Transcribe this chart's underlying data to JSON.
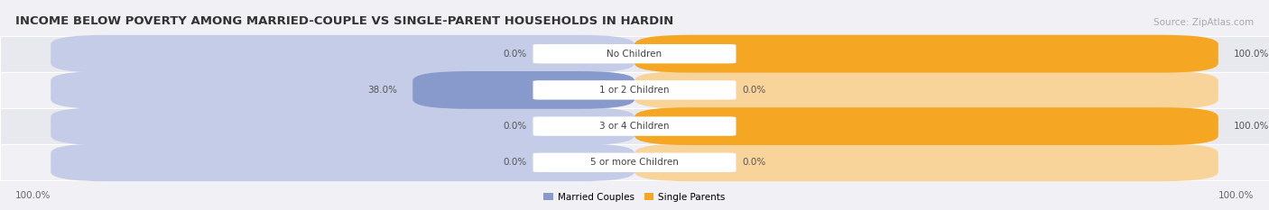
{
  "title": "INCOME BELOW POVERTY AMONG MARRIED-COUPLE VS SINGLE-PARENT HOUSEHOLDS IN HARDIN",
  "source": "Source: ZipAtlas.com",
  "categories": [
    "No Children",
    "1 or 2 Children",
    "3 or 4 Children",
    "5 or more Children"
  ],
  "married_values": [
    0.0,
    38.0,
    0.0,
    0.0
  ],
  "single_values": [
    100.0,
    0.0,
    100.0,
    0.0
  ],
  "married_color": "#8899cc",
  "single_color": "#f5a623",
  "married_color_light": "#c5cce8",
  "single_color_light": "#f9d49a",
  "married_label": "Married Couples",
  "single_label": "Single Parents",
  "axis_label_left": "100.0%",
  "axis_label_right": "100.0%",
  "title_fontsize": 9.5,
  "source_fontsize": 7.5,
  "label_fontsize": 7.5,
  "bg_color": "#f0f0f5",
  "row_bg_even": "#e8e8ef",
  "row_bg_odd": "#f0f0f5",
  "row_border_color": "#ffffff",
  "center_label_bg": "#ffffff"
}
